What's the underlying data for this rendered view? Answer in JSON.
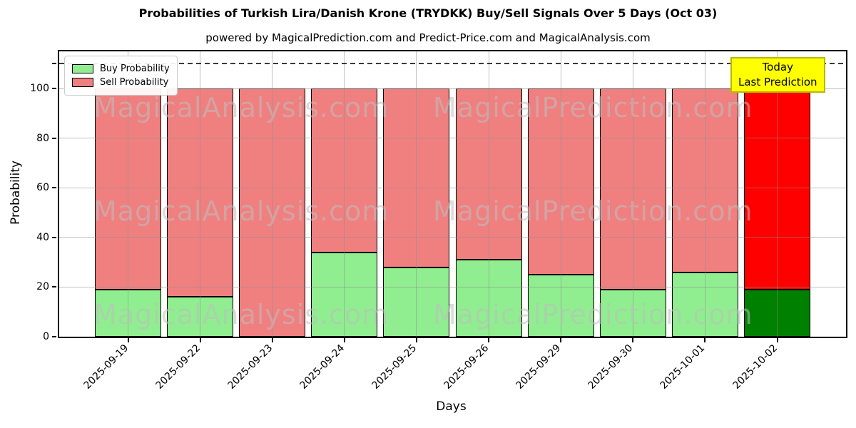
{
  "title": "Probabilities of Turkish Lira/Danish Krone (TRYDKK) Buy/Sell Signals Over 5 Days (Oct 03)",
  "subtitle": "powered by MagicalPrediction.com and Predict-Price.com and MagicalAnalysis.com",
  "watermark": {
    "left_text": "MagicalAnalysis.com",
    "right_text": "MagicalPrediction.com"
  },
  "legend": {
    "items": [
      {
        "label": "Buy Probability",
        "color": "#90EE90"
      },
      {
        "label": "Sell Probability",
        "color": "#F08080"
      }
    ]
  },
  "annotation": {
    "line1": "Today",
    "line2": "Last Prediction",
    "bg": "#FFFF00",
    "border": "#B8B800"
  },
  "chart_data": {
    "type": "bar",
    "stacked": true,
    "title": "Probabilities of Turkish Lira/Danish Krone (TRYDKK) Buy/Sell Signals Over 5 Days (Oct 03)",
    "xlabel": "Days",
    "ylabel": "Probability",
    "categories": [
      "2025-09-19",
      "2025-09-22",
      "2025-09-23",
      "2025-09-24",
      "2025-09-25",
      "2025-09-26",
      "2025-09-29",
      "2025-09-30",
      "2025-10-01",
      "2025-10-02"
    ],
    "series": [
      {
        "name": "Buy Probability",
        "color": "#90EE90",
        "last_bar_color": "#008000",
        "values": [
          19,
          16,
          0,
          34,
          28,
          31,
          25,
          19,
          26,
          19
        ]
      },
      {
        "name": "Sell Probability",
        "color": "#F08080",
        "last_bar_color": "#FF0000",
        "values": [
          81,
          84,
          100,
          66,
          72,
          69,
          75,
          81,
          74,
          81
        ]
      }
    ],
    "ylim": [
      0,
      115
    ],
    "yticks": [
      0,
      20,
      40,
      60,
      80,
      100
    ],
    "dashed_line_y": 110,
    "grid": true,
    "legend_position": "upper left",
    "bar_edge_color": "#000000"
  }
}
